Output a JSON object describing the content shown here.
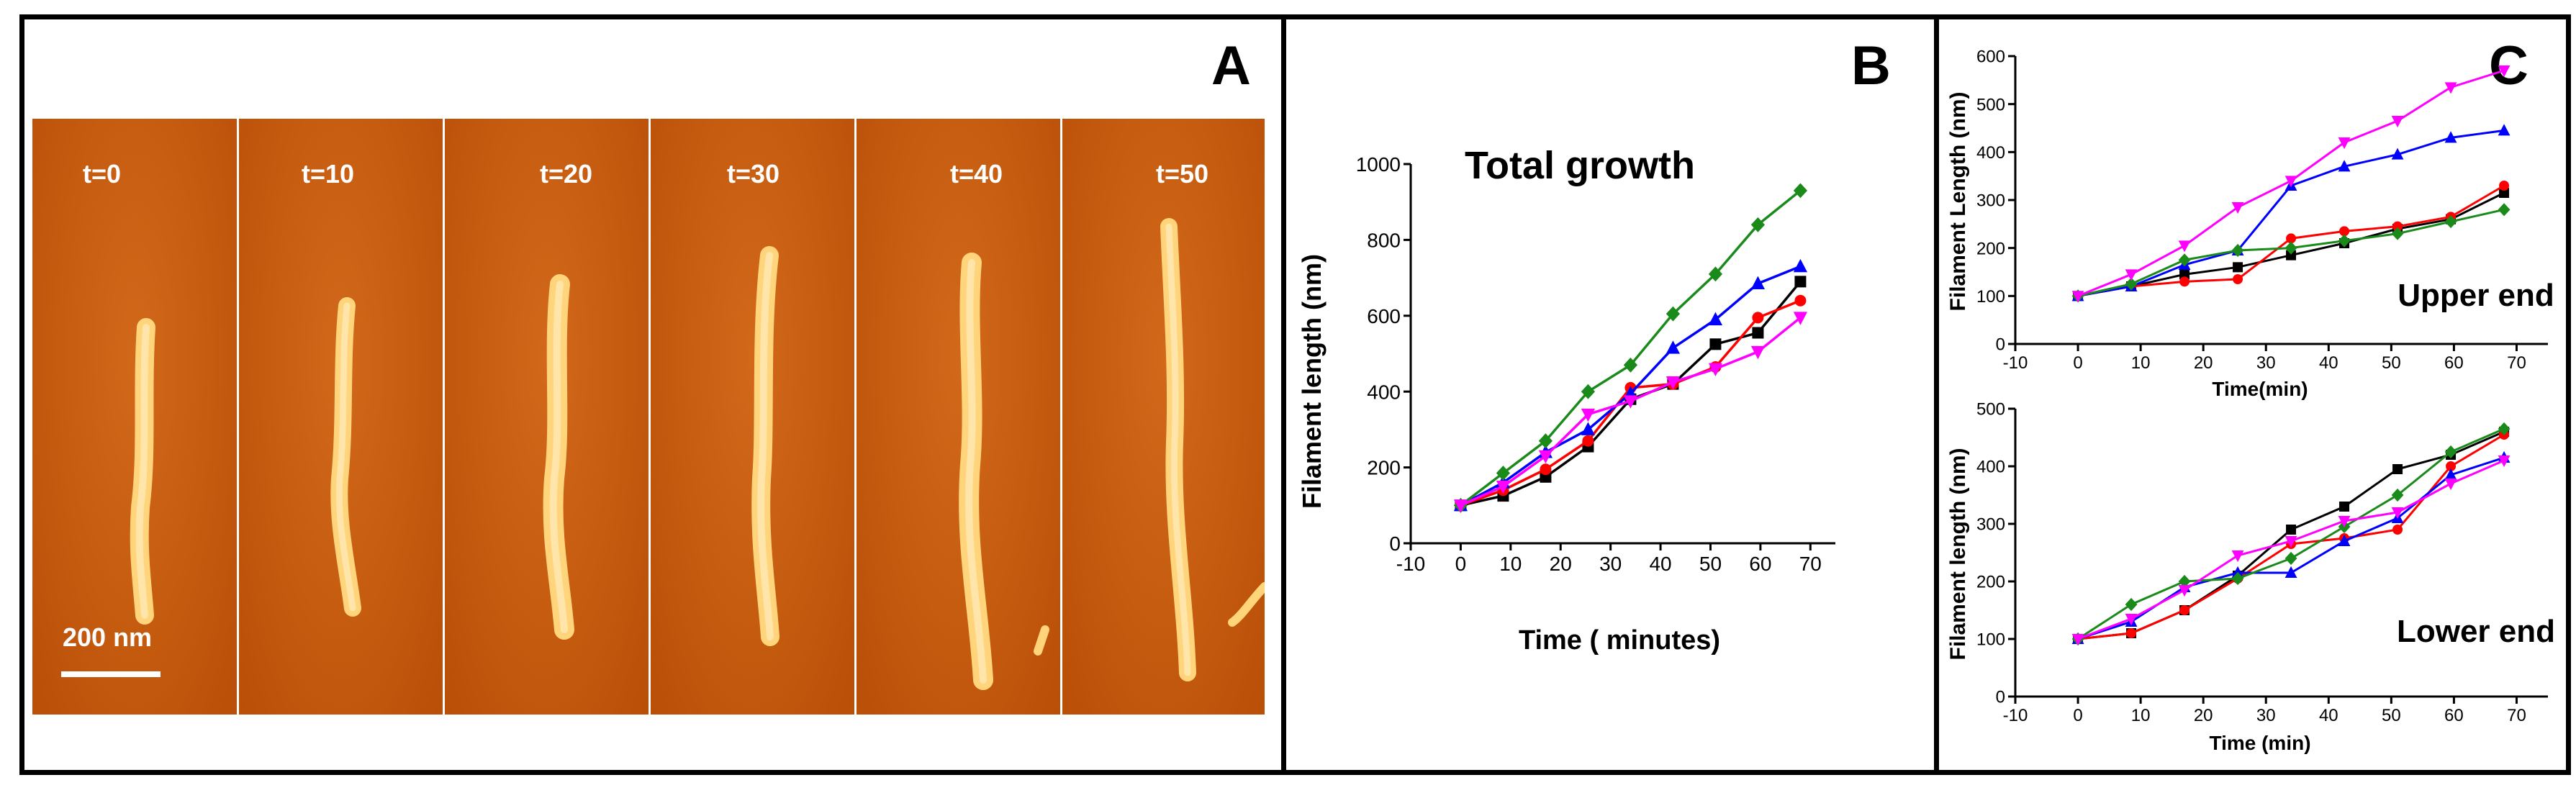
{
  "panels": {
    "a": {
      "letter": "A",
      "frames": [
        {
          "label": "t=0"
        },
        {
          "label": "t=10"
        },
        {
          "label": "t=20"
        },
        {
          "label": "t=30"
        },
        {
          "label": "t=40"
        },
        {
          "label": "t=50"
        }
      ],
      "scale_bar_label": "200 nm"
    },
    "b": {
      "letter": "B"
    },
    "c": {
      "letter": "C"
    }
  },
  "colors": {
    "black": "#000000",
    "red": "#ff0000",
    "blue": "#0000ff",
    "green": "#1a8a1a",
    "magenta": "#ff00ff"
  },
  "chart_data": [
    {
      "id": "total",
      "type": "line",
      "title": "Total growth",
      "xlabel": "Time ( minutes)",
      "ylabel": "Filament length (nm)",
      "xlim": [
        -10,
        75
      ],
      "ylim": [
        0,
        1000
      ],
      "xticks": [
        -10,
        0,
        10,
        20,
        30,
        40,
        50,
        60,
        70
      ],
      "yticks": [
        0,
        200,
        400,
        600,
        800,
        1000
      ],
      "x": [
        0,
        8.5,
        17,
        25.5,
        34,
        42.5,
        51,
        59.5,
        68
      ],
      "series": [
        {
          "name": "black",
          "color": "#000000",
          "marker": "square",
          "values": [
            100,
            125,
            175,
            255,
            380,
            420,
            525,
            555,
            690
          ]
        },
        {
          "name": "red",
          "color": "#ff0000",
          "marker": "circle",
          "values": [
            100,
            140,
            195,
            270,
            410,
            420,
            465,
            595,
            640
          ]
        },
        {
          "name": "blue",
          "color": "#0000ff",
          "marker": "triangle-up",
          "values": [
            100,
            160,
            240,
            300,
            395,
            515,
            590,
            685,
            730
          ]
        },
        {
          "name": "green",
          "color": "#1a8a1a",
          "marker": "diamond",
          "values": [
            100,
            185,
            270,
            400,
            470,
            605,
            710,
            840,
            930
          ]
        },
        {
          "name": "magenta",
          "color": "#ff00ff",
          "marker": "triangle-down",
          "values": [
            100,
            150,
            230,
            340,
            375,
            425,
            460,
            505,
            595
          ]
        }
      ]
    },
    {
      "id": "upper",
      "type": "line",
      "title": "Upper end",
      "xlabel": "Time(min)",
      "ylabel": "Filament Length (nm)",
      "xlim": [
        -10,
        75
      ],
      "ylim": [
        0,
        600
      ],
      "xticks": [
        -10,
        0,
        10,
        20,
        30,
        40,
        50,
        60,
        70
      ],
      "yticks": [
        0,
        100,
        200,
        300,
        400,
        500,
        600
      ],
      "x": [
        0,
        8.5,
        17,
        25.5,
        34,
        42.5,
        51,
        59.5,
        68
      ],
      "series": [
        {
          "name": "black",
          "color": "#000000",
          "marker": "square",
          "values": [
            100,
            120,
            145,
            160,
            185,
            210,
            240,
            260,
            315
          ]
        },
        {
          "name": "red",
          "color": "#ff0000",
          "marker": "circle",
          "values": [
            100,
            120,
            130,
            135,
            220,
            235,
            245,
            265,
            330
          ]
        },
        {
          "name": "blue",
          "color": "#0000ff",
          "marker": "triangle-up",
          "values": [
            100,
            120,
            165,
            195,
            330,
            370,
            395,
            430,
            445
          ]
        },
        {
          "name": "green",
          "color": "#1a8a1a",
          "marker": "diamond",
          "values": [
            100,
            125,
            175,
            195,
            200,
            215,
            230,
            255,
            280
          ]
        },
        {
          "name": "magenta",
          "color": "#ff00ff",
          "marker": "triangle-down",
          "values": [
            100,
            145,
            205,
            285,
            340,
            420,
            465,
            535,
            570
          ]
        }
      ]
    },
    {
      "id": "lower",
      "type": "line",
      "title": "Lower end",
      "xlabel": "Time (min)",
      "ylabel": "Filament length (nm)",
      "xlim": [
        -10,
        75
      ],
      "ylim": [
        0,
        500
      ],
      "xticks": [
        -10,
        0,
        10,
        20,
        30,
        40,
        50,
        60,
        70
      ],
      "yticks": [
        0,
        100,
        200,
        300,
        400,
        500
      ],
      "x": [
        0,
        8.5,
        17,
        25.5,
        34,
        42.5,
        51,
        59.5,
        68
      ],
      "series": [
        {
          "name": "black",
          "color": "#000000",
          "marker": "square",
          "values": [
            100,
            110,
            150,
            210,
            290,
            330,
            395,
            420,
            460
          ]
        },
        {
          "name": "red",
          "color": "#ff0000",
          "marker": "circle",
          "values": [
            100,
            110,
            150,
            205,
            265,
            275,
            290,
            400,
            455
          ]
        },
        {
          "name": "blue",
          "color": "#0000ff",
          "marker": "triangle-up",
          "values": [
            100,
            130,
            190,
            215,
            215,
            270,
            310,
            385,
            415
          ]
        },
        {
          "name": "green",
          "color": "#1a8a1a",
          "marker": "diamond",
          "values": [
            100,
            160,
            200,
            205,
            240,
            295,
            350,
            425,
            465
          ]
        },
        {
          "name": "magenta",
          "color": "#ff00ff",
          "marker": "triangle-down",
          "values": [
            100,
            135,
            185,
            245,
            270,
            305,
            320,
            370,
            410
          ]
        }
      ]
    }
  ]
}
